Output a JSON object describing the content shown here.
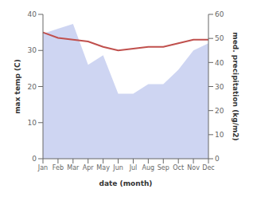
{
  "chart_data": {
    "type": "line",
    "categories": [
      "Jan",
      "Feb",
      "Mar",
      "Apr",
      "May",
      "Jun",
      "Jul",
      "Aug",
      "Sep",
      "Oct",
      "Nov",
      "Dec"
    ],
    "xlabel": "date (month)",
    "ylabel": "max temp (C)",
    "y2label": "med. precipitation (kg/m2)",
    "ylim": [
      0,
      40
    ],
    "yticks": [
      0,
      10,
      20,
      30,
      40
    ],
    "y2lim": [
      0,
      60
    ],
    "y2ticks": [
      0,
      10,
      20,
      30,
      40,
      50,
      60
    ],
    "series": [
      {
        "type": "area",
        "axis": "y2",
        "color": "#c5cef0",
        "values": [
          52.0,
          54.0,
          56.0,
          39.0,
          43.0,
          27.0,
          27.0,
          31.0,
          31.0,
          37.0,
          45.0,
          48.0
        ]
      },
      {
        "type": "line",
        "color": "#c0504d",
        "values": [
          35.0,
          33.5,
          33.0,
          32.5,
          31.0,
          30.0,
          30.5,
          31.0,
          31.0,
          32.0,
          33.0,
          33.0
        ]
      }
    ]
  }
}
